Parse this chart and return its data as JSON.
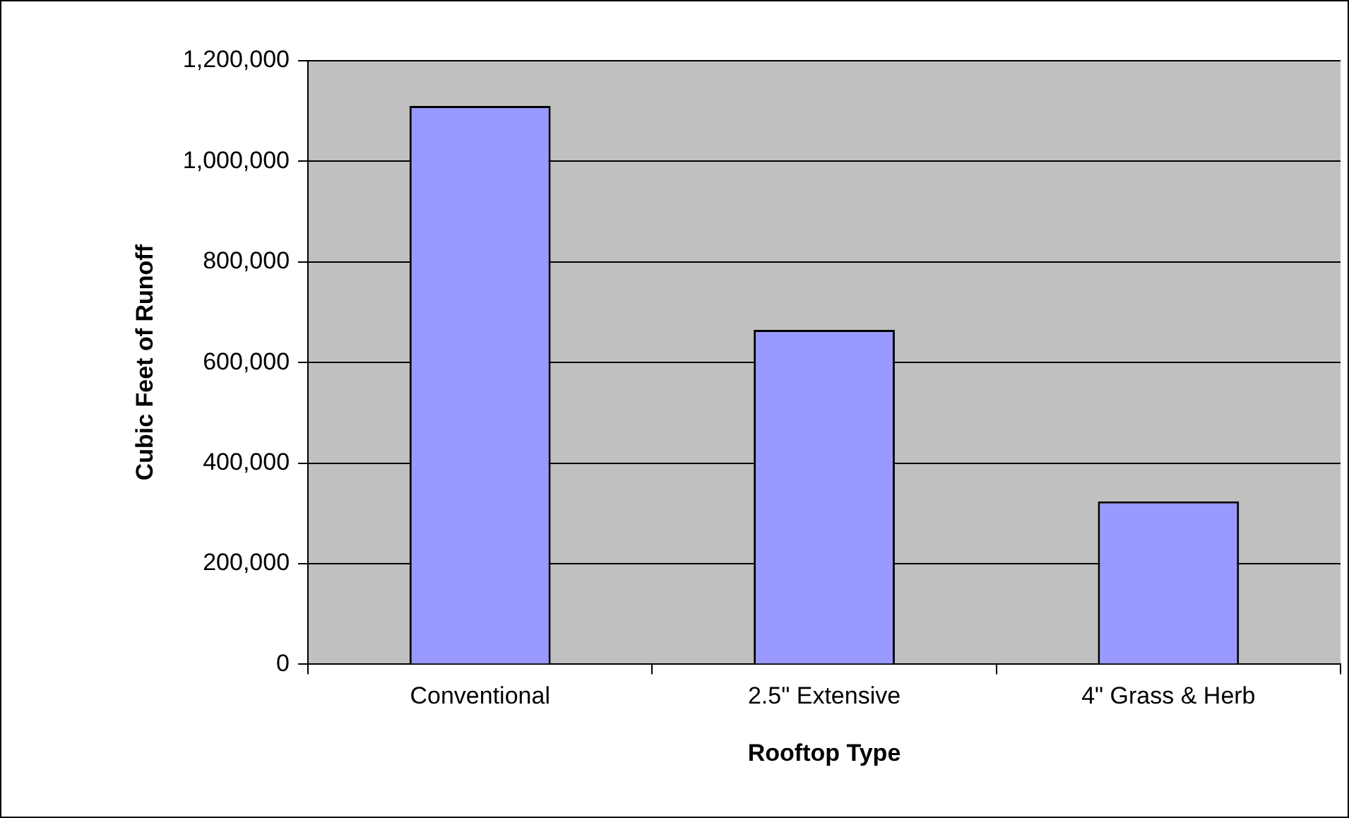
{
  "chart_data": {
    "type": "bar",
    "xlabel": "Rooftop Type",
    "ylabel": "Cubic Feet of Runoff",
    "categories": [
      "Conventional",
      "2.5\" Extensive",
      "4\" Grass & Herb"
    ],
    "values": [
      1110000,
      665000,
      324000
    ],
    "color": "#9999ff",
    "ylim": [
      0,
      1200000
    ],
    "yticks": [
      0,
      {
        "value": 200000,
        "label": "200,000"
      },
      {
        "value": 400000,
        "label": "400,000"
      },
      {
        "value": 600000,
        "label": "600,000"
      },
      {
        "value": 800000,
        "label": "800,000"
      },
      {
        "value": 1000000,
        "label": "1,000,000"
      },
      {
        "value": 1200000,
        "label": "1,200,000"
      }
    ],
    "grid": "y",
    "legend": false
  }
}
